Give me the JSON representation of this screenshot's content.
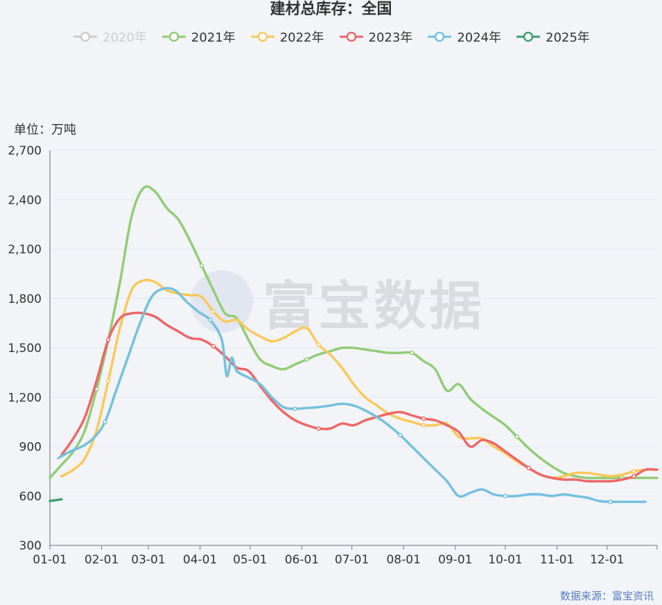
{
  "chart_data": {
    "type": "line",
    "title": "建材总库存：全国",
    "ylabel": "单位：万吨",
    "source": "数据来源：富宝资讯",
    "watermark": "富宝数据",
    "ylim": [
      300,
      2700
    ],
    "yticks": [
      "300",
      "600",
      "900",
      "1,200",
      "1,500",
      "1,800",
      "2,100",
      "2,400",
      "2,700"
    ],
    "xticks": [
      "01-01",
      "02-01",
      "03-01",
      "04-01",
      "05-01",
      "06-01",
      "07-01",
      "08-01",
      "09-01",
      "10-01",
      "11-01",
      "12-01"
    ],
    "x_unit": "day_of_year",
    "grid": true,
    "legend_position": "top-center",
    "series": [
      {
        "name": "2020年",
        "color": "#cccccc",
        "hidden": true,
        "x": [],
        "values": []
      },
      {
        "name": "2021年",
        "color": "#91cc75",
        "x": [
          1,
          8,
          15,
          22,
          29,
          36,
          43,
          50,
          57,
          64,
          71,
          78,
          85,
          92,
          99,
          106,
          113,
          120,
          127,
          134,
          141,
          148,
          155,
          162,
          169,
          176,
          183,
          190,
          197,
          204,
          211,
          218,
          225,
          232,
          239,
          246,
          253,
          260,
          267,
          274,
          281,
          288,
          295,
          302,
          309,
          316,
          323,
          330,
          337,
          344,
          351,
          358,
          365
        ],
        "values": [
          710,
          790,
          870,
          1000,
          1250,
          1550,
          1900,
          2300,
          2470,
          2450,
          2350,
          2280,
          2150,
          2000,
          1850,
          1710,
          1680,
          1550,
          1430,
          1390,
          1370,
          1400,
          1430,
          1460,
          1480,
          1500,
          1500,
          1490,
          1480,
          1470,
          1470,
          1470,
          1420,
          1370,
          1240,
          1280,
          1190,
          1130,
          1080,
          1030,
          960,
          890,
          830,
          780,
          740,
          720,
          710,
          710,
          710,
          710,
          710,
          710,
          710
        ]
      },
      {
        "name": "2022年",
        "color": "#fac858",
        "x": [
          8,
          15,
          22,
          29,
          36,
          43,
          50,
          57,
          64,
          71,
          78,
          85,
          92,
          99,
          106,
          113,
          120,
          127,
          134,
          141,
          148,
          155,
          162,
          169,
          176,
          183,
          190,
          197,
          204,
          211,
          218,
          225,
          232,
          239,
          246,
          253,
          260,
          267,
          274,
          281,
          288,
          295,
          302,
          309,
          316,
          323,
          330,
          337,
          344,
          351,
          358,
          365
        ],
        "values": [
          720,
          760,
          830,
          1000,
          1300,
          1620,
          1850,
          1910,
          1900,
          1850,
          1830,
          1820,
          1810,
          1720,
          1660,
          1670,
          1610,
          1570,
          1540,
          1560,
          1600,
          1620,
          1520,
          1460,
          1380,
          1280,
          1200,
          1150,
          1100,
          1070,
          1050,
          1030,
          1030,
          1040,
          960,
          950,
          950,
          900,
          860,
          810,
          770,
          730,
          710,
          720,
          740,
          740,
          730,
          720,
          730,
          750,
          760,
          760
        ]
      },
      {
        "name": "2023年",
        "color": "#ee6666",
        "x": [
          8,
          15,
          22,
          29,
          36,
          43,
          50,
          57,
          64,
          71,
          78,
          85,
          92,
          99,
          106,
          113,
          120,
          127,
          134,
          141,
          148,
          155,
          162,
          169,
          176,
          183,
          190,
          197,
          204,
          211,
          218,
          225,
          232,
          239,
          246,
          253,
          260,
          267,
          274,
          281,
          288,
          295,
          302,
          309,
          316,
          323,
          330,
          337,
          344,
          351,
          358,
          365
        ],
        "values": [
          850,
          950,
          1080,
          1300,
          1550,
          1680,
          1710,
          1710,
          1690,
          1640,
          1600,
          1560,
          1550,
          1510,
          1450,
          1380,
          1360,
          1270,
          1180,
          1110,
          1060,
          1030,
          1010,
          1010,
          1040,
          1030,
          1060,
          1080,
          1100,
          1110,
          1090,
          1070,
          1060,
          1030,
          990,
          900,
          940,
          920,
          870,
          820,
          770,
          730,
          710,
          700,
          700,
          690,
          690,
          690,
          700,
          720,
          760,
          760
        ]
      },
      {
        "name": "2024年",
        "color": "#73c0de",
        "x": [
          6,
          13,
          20,
          27,
          34,
          41,
          48,
          55,
          62,
          69,
          76,
          83,
          90,
          97,
          104,
          107,
          110,
          113,
          120,
          127,
          134,
          141,
          148,
          155,
          162,
          169,
          176,
          183,
          190,
          197,
          204,
          211,
          218,
          225,
          232,
          239,
          246,
          253,
          260,
          267,
          274,
          281,
          288,
          295,
          302,
          309,
          316,
          323,
          330,
          337,
          344,
          351,
          358
        ],
        "values": [
          830,
          870,
          900,
          950,
          1050,
          1250,
          1450,
          1650,
          1810,
          1860,
          1850,
          1780,
          1720,
          1670,
          1550,
          1330,
          1440,
          1360,
          1320,
          1280,
          1200,
          1140,
          1130,
          1135,
          1140,
          1150,
          1160,
          1150,
          1120,
          1080,
          1030,
          970,
          900,
          830,
          760,
          690,
          600,
          620,
          640,
          610,
          600,
          600,
          610,
          610,
          600,
          610,
          600,
          590,
          570,
          565,
          565,
          565,
          565
        ]
      },
      {
        "name": "2025年",
        "color": "#3ba272",
        "x": [
          1,
          8
        ],
        "values": [
          570,
          580
        ]
      }
    ]
  }
}
